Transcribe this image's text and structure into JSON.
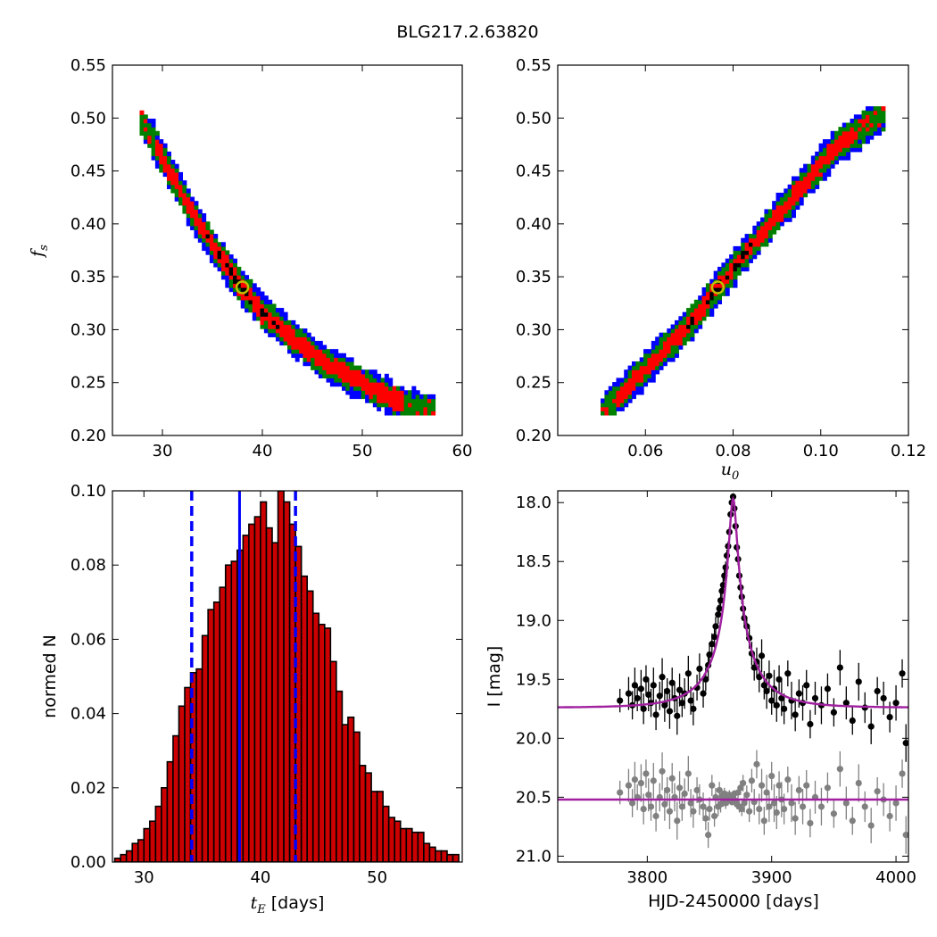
{
  "title": "BLG217.2.63820",
  "colors": {
    "level1": "#0000ff",
    "level2": "#008000",
    "level3": "#ff0000",
    "level4": "#000000",
    "best_fit_marker": "#bfbf00",
    "hist_bar": "#cc0000",
    "median_line": "#0000ff",
    "model": "#a020a0",
    "data_main": "#000000",
    "data_residual": "#808080"
  },
  "chart_data": [
    {
      "id": "fs_vs_tE",
      "type": "heatmap",
      "xlabel": "",
      "ylabel": "f_s",
      "xlim": [
        25,
        60
      ],
      "ylim": [
        0.2,
        0.55
      ],
      "xticks": [
        "30",
        "40",
        "50",
        "60"
      ],
      "yticks": [
        "0.20",
        "0.25",
        "0.30",
        "0.35",
        "0.40",
        "0.45",
        "0.50",
        "0.55"
      ],
      "ridge": {
        "x": [
          27.8,
          30.0,
          33.0,
          36.0,
          38.0,
          40.0,
          43.0,
          46.0,
          49.0,
          52.0,
          55.0,
          57.0
        ],
        "y": [
          0.5,
          0.463,
          0.41,
          0.366,
          0.34,
          0.317,
          0.293,
          0.271,
          0.255,
          0.24,
          0.227,
          0.222
        ]
      },
      "confidence_levels": [
        "blue",
        "green",
        "red",
        "black"
      ],
      "best_fit": {
        "x": 38.0,
        "y": 0.34
      }
    },
    {
      "id": "fs_vs_u0",
      "type": "heatmap",
      "xlabel": "u_0",
      "ylabel": "",
      "xlim": [
        0.04,
        0.12
      ],
      "ylim": [
        0.2,
        0.55
      ],
      "xticks": [
        "0.06",
        "0.08",
        "0.10",
        "0.12"
      ],
      "yticks": [
        "0.20",
        "0.25",
        "0.30",
        "0.35",
        "0.40",
        "0.45",
        "0.50",
        "0.55"
      ],
      "ridge": {
        "x": [
          0.0505,
          0.06,
          0.07,
          0.0765,
          0.085,
          0.095,
          0.104,
          0.114
        ],
        "y": [
          0.222,
          0.263,
          0.305,
          0.34,
          0.383,
          0.432,
          0.475,
          0.503
        ]
      },
      "confidence_levels": [
        "blue",
        "green",
        "red",
        "black"
      ],
      "best_fit": {
        "x": 0.0765,
        "y": 0.34
      }
    },
    {
      "id": "tE_histogram",
      "type": "bar",
      "xlabel": "t_E [days]",
      "ylabel": "normed N",
      "xlim": [
        27.3,
        57.3
      ],
      "ylim": [
        0,
        0.1
      ],
      "xticks": [
        "30",
        "40",
        "50"
      ],
      "yticks": [
        "0.00",
        "0.02",
        "0.04",
        "0.06",
        "0.08",
        "0.10"
      ],
      "bin_start": 27.5,
      "bin_width": 0.5,
      "values": [
        0.001,
        0.002,
        0.003,
        0.005,
        0.006,
        0.009,
        0.011,
        0.015,
        0.02,
        0.027,
        0.034,
        0.042,
        0.047,
        0.051,
        0.052,
        0.061,
        0.068,
        0.07,
        0.074,
        0.08,
        0.081,
        0.084,
        0.088,
        0.091,
        0.093,
        0.097,
        0.09,
        0.086,
        0.1,
        0.097,
        0.091,
        0.085,
        0.077,
        0.073,
        0.067,
        0.064,
        0.063,
        0.054,
        0.046,
        0.037,
        0.039,
        0.035,
        0.026,
        0.024,
        0.019,
        0.019,
        0.015,
        0.012,
        0.011,
        0.009,
        0.009,
        0.008,
        0.008,
        0.005,
        0.004,
        0.003,
        0.003,
        0.002,
        0.002
      ],
      "median": 38.2,
      "interval": [
        34.1,
        43.0
      ]
    },
    {
      "id": "lightcurve",
      "type": "scatter",
      "xlabel": "HJD-2450000 [days]",
      "ylabel": "I [mag]",
      "xlim": [
        3728,
        4010
      ],
      "ylim": [
        21.05,
        17.9
      ],
      "y_inverted": true,
      "xticks": [
        "3800",
        "3900",
        "4000"
      ],
      "yticks": [
        "18.0",
        "18.5",
        "19.0",
        "19.5",
        "20.0",
        "20.5",
        "21.0"
      ],
      "model": {
        "t0": 3869.0,
        "u0": 0.0765,
        "tE": 38.0,
        "baseline": 19.74
      },
      "residual_offset": 20.52,
      "series": [
        {
          "role": "data",
          "x": [
            3778,
            3785,
            3788,
            3790,
            3792,
            3795,
            3797,
            3799,
            3801,
            3803,
            3805,
            3807,
            3810,
            3812,
            3814,
            3816,
            3818,
            3820,
            3822,
            3824,
            3826,
            3828,
            3830,
            3833,
            3835,
            3837,
            3840,
            3842,
            3845,
            3847,
            3849,
            3850,
            3852,
            3854,
            3855,
            3857,
            3858,
            3859,
            3860,
            3861,
            3862,
            3863,
            3864,
            3865,
            3866,
            3867,
            3868,
            3869,
            3870,
            3871,
            3872,
            3873,
            3874,
            3875,
            3876,
            3877,
            3878,
            3880,
            3882,
            3884,
            3886,
            3888,
            3890,
            3892,
            3894,
            3896,
            3898,
            3900,
            3902,
            3904,
            3906,
            3908,
            3910,
            3913,
            3916,
            3919,
            3922,
            3925,
            3928,
            3931,
            3935,
            3940,
            3945,
            3950,
            3955,
            3960,
            3965,
            3970,
            3975,
            3980,
            3985,
            3990,
            3995,
            4000,
            4005,
            4008
          ],
          "y": [
            19.68,
            19.62,
            19.72,
            19.55,
            19.66,
            19.58,
            19.75,
            19.5,
            19.63,
            19.7,
            19.55,
            19.8,
            19.64,
            19.48,
            19.72,
            19.6,
            19.77,
            19.53,
            19.66,
            19.81,
            19.59,
            19.7,
            19.62,
            19.45,
            19.68,
            19.75,
            19.57,
            19.41,
            19.62,
            19.5,
            19.38,
            19.29,
            19.2,
            19.14,
            19.05,
            18.95,
            18.9,
            18.83,
            18.75,
            18.7,
            18.62,
            18.55,
            18.45,
            18.37,
            18.25,
            18.1,
            18.0,
            17.95,
            18.05,
            18.2,
            18.38,
            18.48,
            18.62,
            18.72,
            18.8,
            18.9,
            18.98,
            19.05,
            19.15,
            19.28,
            19.4,
            19.35,
            19.48,
            19.3,
            19.55,
            19.6,
            19.47,
            19.68,
            19.58,
            19.72,
            19.5,
            19.66,
            19.75,
            19.45,
            19.68,
            19.8,
            19.62,
            19.7,
            19.55,
            19.88,
            19.66,
            19.72,
            19.58,
            19.78,
            19.4,
            19.7,
            19.85,
            19.52,
            19.74,
            19.9,
            19.6,
            19.66,
            19.82,
            19.7,
            19.45,
            20.04
          ],
          "err": [
            0.1,
            0.14,
            0.12,
            0.15,
            0.11,
            0.16,
            0.13,
            0.12,
            0.14,
            0.12,
            0.15,
            0.13,
            0.12,
            0.16,
            0.14,
            0.11,
            0.15,
            0.13,
            0.12,
            0.16,
            0.14,
            0.12,
            0.13,
            0.15,
            0.12,
            0.14,
            0.11,
            0.13,
            0.12,
            0.1,
            0.11,
            0.1,
            0.09,
            0.09,
            0.08,
            0.08,
            0.07,
            0.07,
            0.06,
            0.06,
            0.05,
            0.05,
            0.05,
            0.04,
            0.04,
            0.03,
            0.03,
            0.03,
            0.03,
            0.04,
            0.04,
            0.05,
            0.05,
            0.06,
            0.06,
            0.07,
            0.08,
            0.08,
            0.09,
            0.1,
            0.11,
            0.12,
            0.13,
            0.14,
            0.12,
            0.15,
            0.13,
            0.12,
            0.16,
            0.14,
            0.12,
            0.15,
            0.13,
            0.11,
            0.16,
            0.14,
            0.12,
            0.15,
            0.13,
            0.12,
            0.14,
            0.16,
            0.13,
            0.12,
            0.15,
            0.14,
            0.12,
            0.16,
            0.13,
            0.15,
            0.12,
            0.14,
            0.13,
            0.15,
            0.12,
            0.16
          ]
        },
        {
          "role": "residuals",
          "x": [
            3778,
            3785,
            3788,
            3790,
            3792,
            3795,
            3797,
            3799,
            3801,
            3803,
            3805,
            3807,
            3810,
            3812,
            3814,
            3816,
            3818,
            3820,
            3822,
            3824,
            3826,
            3828,
            3830,
            3833,
            3835,
            3837,
            3840,
            3842,
            3845,
            3847,
            3849,
            3850,
            3852,
            3854,
            3855,
            3857,
            3858,
            3859,
            3860,
            3861,
            3862,
            3863,
            3864,
            3865,
            3866,
            3867,
            3868,
            3869,
            3870,
            3871,
            3872,
            3873,
            3874,
            3875,
            3876,
            3877,
            3878,
            3880,
            3882,
            3884,
            3886,
            3888,
            3890,
            3892,
            3894,
            3896,
            3898,
            3900,
            3902,
            3904,
            3906,
            3908,
            3910,
            3913,
            3916,
            3919,
            3922,
            3925,
            3928,
            3931,
            3935,
            3940,
            3945,
            3950,
            3955,
            3960,
            3965,
            3970,
            3975,
            3980,
            3985,
            3990,
            3995,
            4000,
            4005,
            4008
          ],
          "y": [
            20.46,
            20.4,
            20.55,
            20.35,
            20.5,
            20.38,
            20.6,
            20.3,
            20.48,
            20.58,
            20.36,
            20.66,
            20.5,
            20.28,
            20.56,
            20.44,
            20.62,
            20.34,
            20.5,
            20.7,
            20.42,
            20.58,
            20.47,
            20.3,
            20.55,
            20.62,
            20.44,
            20.52,
            20.58,
            20.68,
            20.82,
            20.6,
            20.4,
            20.66,
            20.5,
            20.58,
            20.44,
            20.56,
            20.49,
            20.52,
            20.47,
            20.55,
            20.5,
            20.53,
            20.48,
            20.51,
            20.54,
            20.5,
            20.47,
            20.53,
            20.56,
            20.46,
            20.58,
            20.42,
            20.6,
            20.38,
            20.55,
            20.48,
            20.62,
            20.36,
            20.54,
            20.22,
            20.6,
            20.4,
            20.7,
            20.46,
            20.58,
            20.32,
            20.55,
            20.63,
            20.4,
            20.52,
            20.6,
            20.35,
            20.55,
            20.68,
            20.44,
            20.58,
            20.4,
            20.72,
            20.5,
            20.58,
            20.42,
            20.64,
            20.26,
            20.55,
            20.7,
            20.38,
            20.58,
            20.74,
            20.45,
            20.52,
            20.66,
            20.55,
            20.3,
            20.82
          ],
          "err": [
            0.1,
            0.14,
            0.12,
            0.15,
            0.11,
            0.16,
            0.13,
            0.12,
            0.14,
            0.12,
            0.15,
            0.13,
            0.12,
            0.16,
            0.14,
            0.11,
            0.15,
            0.13,
            0.12,
            0.16,
            0.14,
            0.12,
            0.13,
            0.15,
            0.12,
            0.14,
            0.11,
            0.13,
            0.12,
            0.1,
            0.11,
            0.1,
            0.09,
            0.09,
            0.08,
            0.08,
            0.07,
            0.07,
            0.06,
            0.06,
            0.05,
            0.05,
            0.05,
            0.04,
            0.04,
            0.03,
            0.03,
            0.03,
            0.03,
            0.04,
            0.04,
            0.05,
            0.05,
            0.06,
            0.06,
            0.07,
            0.08,
            0.08,
            0.09,
            0.1,
            0.11,
            0.12,
            0.13,
            0.14,
            0.12,
            0.15,
            0.13,
            0.12,
            0.16,
            0.14,
            0.12,
            0.15,
            0.13,
            0.11,
            0.16,
            0.14,
            0.12,
            0.15,
            0.13,
            0.12,
            0.14,
            0.16,
            0.13,
            0.12,
            0.15,
            0.14,
            0.12,
            0.16,
            0.13,
            0.15,
            0.12,
            0.14,
            0.13,
            0.15,
            0.12,
            0.16
          ]
        }
      ]
    }
  ]
}
